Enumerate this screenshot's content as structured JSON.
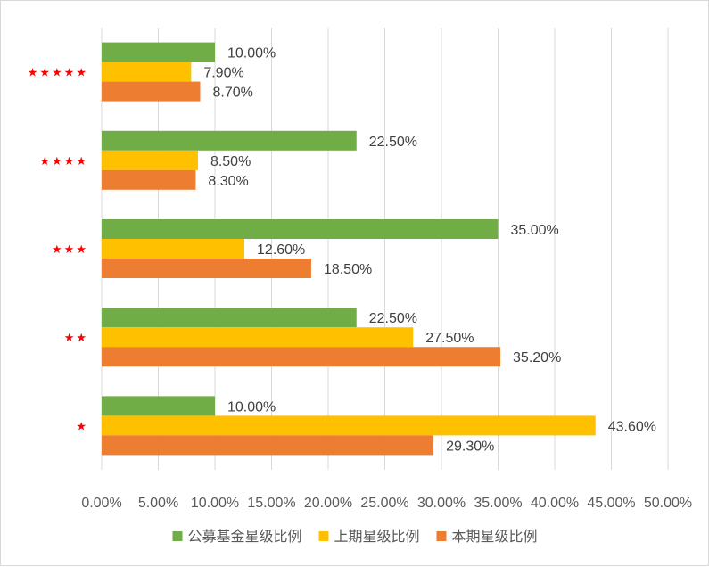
{
  "chart_data": {
    "type": "bar",
    "orientation": "horizontal",
    "categories": [
      "★★★★★",
      "★★★★",
      "★★★",
      "★★",
      "★"
    ],
    "series": [
      {
        "name": "公募基金星级比例",
        "color": "#70ad47",
        "values": [
          10.0,
          22.5,
          35.0,
          22.5,
          10.0
        ],
        "labels": [
          "10.00%",
          "22.50%",
          "35.00%",
          "22.50%",
          "10.00%"
        ]
      },
      {
        "name": "上期星级比例",
        "color": "#ffc000",
        "values": [
          7.9,
          8.5,
          12.6,
          27.5,
          43.6
        ],
        "labels": [
          "7.90%",
          "8.50%",
          "12.60%",
          "27.50%",
          "43.60%"
        ]
      },
      {
        "name": "本期星级比例",
        "color": "#ed7d31",
        "values": [
          8.7,
          8.3,
          18.5,
          35.2,
          29.3
        ],
        "labels": [
          "8.70%",
          "8.30%",
          "18.50%",
          "35.20%",
          "29.30%"
        ]
      }
    ],
    "xlim": [
      0,
      50
    ],
    "x_ticks": [
      "0.00%",
      "5.00%",
      "10.00%",
      "15.00%",
      "20.00%",
      "25.00%",
      "30.00%",
      "35.00%",
      "40.00%",
      "45.00%",
      "50.00%"
    ],
    "category_color": "#ff0000",
    "grid": true,
    "legend_position": "bottom"
  }
}
